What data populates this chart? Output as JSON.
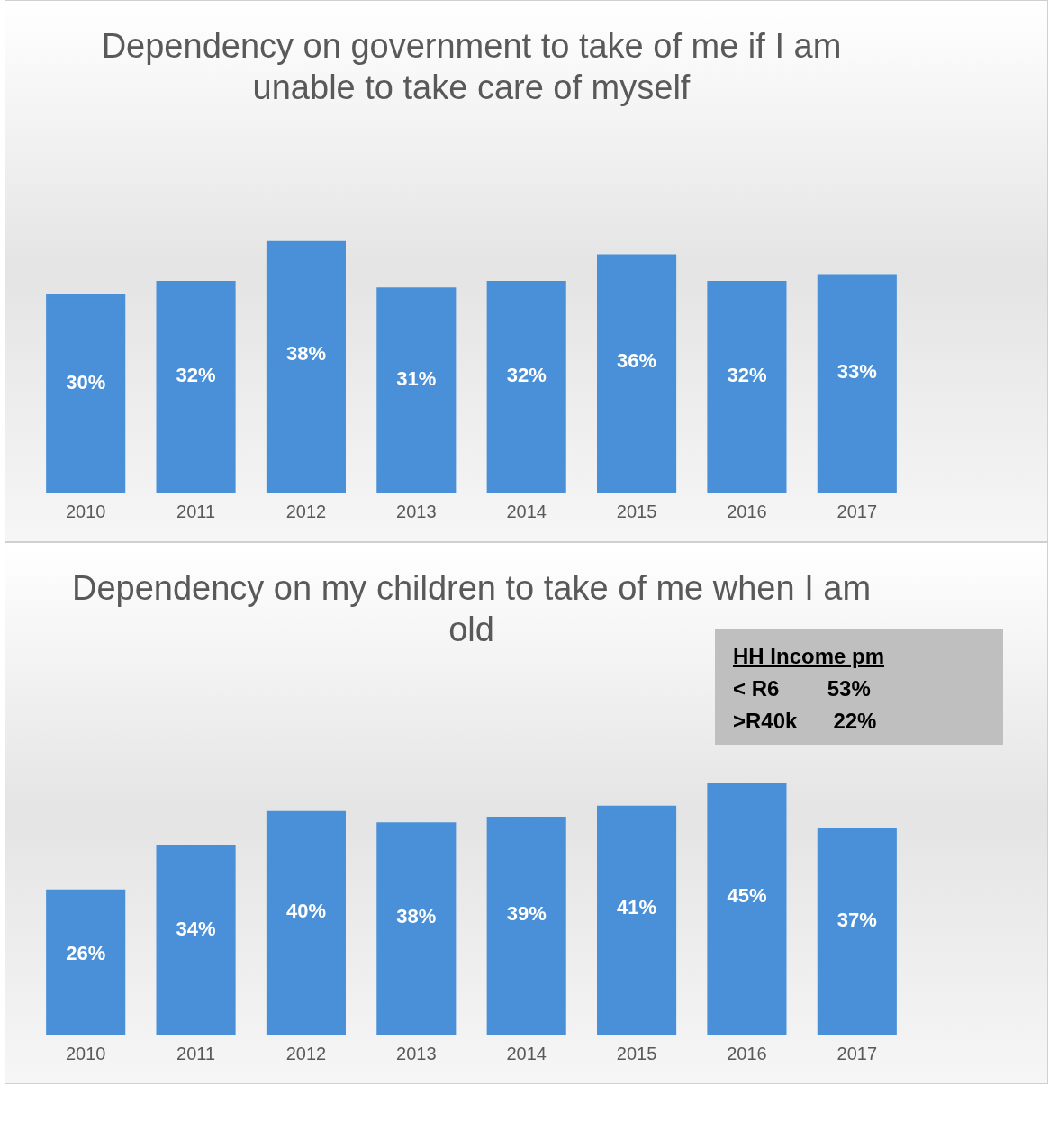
{
  "chart_data": [
    {
      "type": "bar",
      "title": "Dependency on government to take of me if I am unable to take care of myself",
      "categories": [
        "2010",
        "2011",
        "2012",
        "2013",
        "2014",
        "2015",
        "2016",
        "2017"
      ],
      "values": [
        30,
        32,
        38,
        31,
        32,
        36,
        32,
        33
      ],
      "color": "#4a90d9",
      "value_labels": [
        "30%",
        "32%",
        "38%",
        "31%",
        "32%",
        "36%",
        "32%",
        "33%"
      ],
      "grid": false,
      "legend": false,
      "tick_labels": "x"
    },
    {
      "type": "bar",
      "title": "Dependency on my children to take of me when I am old",
      "categories": [
        "2010",
        "2011",
        "2012",
        "2013",
        "2014",
        "2015",
        "2016",
        "2017"
      ],
      "values": [
        26,
        34,
        40,
        38,
        39,
        41,
        45,
        37
      ],
      "color": "#4a90d9",
      "value_labels": [
        "26%",
        "34%",
        "40%",
        "38%",
        "39%",
        "41%",
        "45%",
        "37%"
      ],
      "grid": false,
      "legend": false,
      "tick_labels": "x",
      "annotations": [
        "HH Income pm",
        "< R6        53%",
        ">R40k      22%"
      ]
    }
  ]
}
